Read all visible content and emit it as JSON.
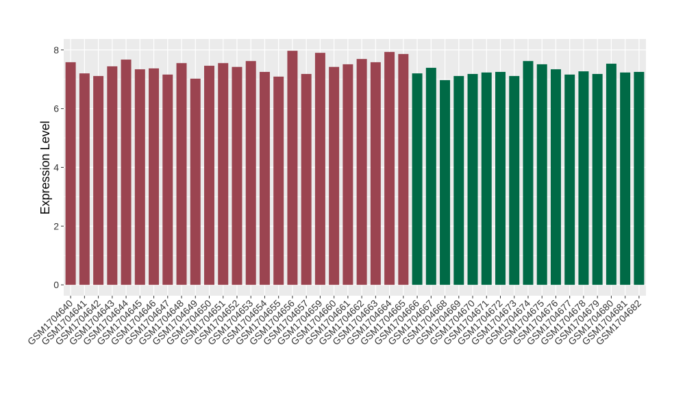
{
  "chart_data": {
    "type": "bar",
    "y_label": "Expression Level",
    "categories": [
      "GSM1704640",
      "GSM1704641",
      "GSM1704642",
      "GSM1704643",
      "GSM1704644",
      "GSM1704645",
      "GSM1704646",
      "GSM1704647",
      "GSM1704648",
      "GSM1704649",
      "GSM1704650",
      "GSM1704651",
      "GSM1704652",
      "GSM1704653",
      "GSM1704654",
      "GSM1704655",
      "GSM1704656",
      "GSM1704657",
      "GSM1704659",
      "GSM1704660",
      "GSM1704661",
      "GSM1704662",
      "GSM1704663",
      "GSM1704664",
      "GSM1704665",
      "GSM1704666",
      "GSM1704667",
      "GSM1704668",
      "GSM1704669",
      "GSM1704670",
      "GSM1704671",
      "GSM1704672",
      "GSM1704673",
      "GSM1704674",
      "GSM1704675",
      "GSM1704676",
      "GSM1704677",
      "GSM1704678",
      "GSM1704679",
      "GSM1704680",
      "GSM1704681",
      "GSM1704682"
    ],
    "values": [
      7.58,
      7.2,
      7.11,
      7.44,
      7.67,
      7.34,
      7.37,
      7.16,
      7.55,
      7.02,
      7.46,
      7.55,
      7.42,
      7.62,
      7.25,
      7.09,
      7.97,
      7.18,
      7.9,
      7.42,
      7.51,
      7.69,
      7.58,
      7.93,
      7.86,
      7.2,
      7.39,
      6.97,
      7.11,
      7.18,
      7.23,
      7.25,
      7.11,
      7.62,
      7.51,
      7.34,
      7.16,
      7.27,
      7.18,
      7.53,
      7.23,
      7.25
    ],
    "colors": [
      "#9b4450",
      "#9b4450",
      "#9b4450",
      "#9b4450",
      "#9b4450",
      "#9b4450",
      "#9b4450",
      "#9b4450",
      "#9b4450",
      "#9b4450",
      "#9b4450",
      "#9b4450",
      "#9b4450",
      "#9b4450",
      "#9b4450",
      "#9b4450",
      "#9b4450",
      "#9b4450",
      "#9b4450",
      "#9b4450",
      "#9b4450",
      "#9b4450",
      "#9b4450",
      "#9b4450",
      "#9b4450",
      "#006a46",
      "#006a46",
      "#006a46",
      "#006a46",
      "#006a46",
      "#006a46",
      "#006a46",
      "#006a46",
      "#006a46",
      "#006a46",
      "#006a46",
      "#006a46",
      "#006a46",
      "#006a46",
      "#006a46",
      "#006a46",
      "#006a46"
    ],
    "ylim": [
      -0.37,
      8.37
    ],
    "yticks": [
      0,
      2,
      4,
      6,
      8
    ],
    "grid": true
  }
}
